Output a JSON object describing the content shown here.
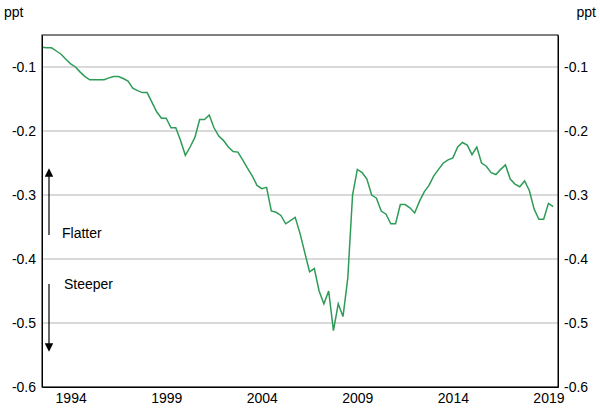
{
  "chart_data": {
    "type": "line",
    "ylabel": "ppt",
    "annotations": [
      "Flatter",
      "Steeper"
    ],
    "color": "#2e9b57",
    "grid": true,
    "x": [
      1993,
      1993.25,
      1993.5,
      1993.75,
      1994,
      1994.25,
      1994.5,
      1994.75,
      1995,
      1995.25,
      1995.5,
      1995.75,
      1996,
      1996.25,
      1996.5,
      1996.75,
      1997,
      1997.25,
      1997.5,
      1997.75,
      1998,
      1998.25,
      1998.5,
      1998.75,
      1999,
      1999.25,
      1999.5,
      1999.75,
      2000,
      2000.25,
      2000.5,
      2000.75,
      2001,
      2001.25,
      2001.5,
      2001.75,
      2002,
      2002.25,
      2002.5,
      2002.75,
      2003,
      2003.25,
      2003.5,
      2003.75,
      2004,
      2004.25,
      2004.5,
      2004.75,
      2005,
      2005.25,
      2005.5,
      2005.75,
      2006,
      2006.25,
      2006.5,
      2006.75,
      2007,
      2007.25,
      2007.5,
      2007.75,
      2008,
      2008.25,
      2008.5,
      2008.75,
      2009,
      2009.25,
      2009.5,
      2009.75,
      2010,
      2010.25,
      2010.5,
      2010.75,
      2011,
      2011.25,
      2011.5,
      2011.75,
      2012,
      2012.25,
      2012.5,
      2012.75,
      2013,
      2013.25,
      2013.5,
      2013.75,
      2014,
      2014.25,
      2014.5,
      2014.75,
      2015,
      2015.25,
      2015.5,
      2015.75,
      2016,
      2016.25,
      2016.5,
      2016.75,
      2017,
      2017.25,
      2017.5,
      2017.75,
      2018,
      2018.25,
      2018.5,
      2018.75,
      2019,
      2019.25,
      2019.5,
      2019.75
    ],
    "values": [
      -0.069,
      -0.07,
      -0.07,
      -0.075,
      -0.08,
      -0.088,
      -0.095,
      -0.1,
      -0.108,
      -0.115,
      -0.12,
      -0.12,
      -0.12,
      -0.12,
      -0.117,
      -0.115,
      -0.115,
      -0.118,
      -0.122,
      -0.133,
      -0.137,
      -0.14,
      -0.14,
      -0.155,
      -0.17,
      -0.18,
      -0.18,
      -0.195,
      -0.195,
      -0.215,
      -0.238,
      -0.225,
      -0.21,
      -0.182,
      -0.182,
      -0.175,
      -0.195,
      -0.208,
      -0.215,
      -0.225,
      -0.232,
      -0.233,
      -0.245,
      -0.258,
      -0.27,
      -0.285,
      -0.29,
      -0.288,
      -0.325,
      -0.327,
      -0.332,
      -0.345,
      -0.34,
      -0.335,
      -0.36,
      -0.39,
      -0.42,
      -0.415,
      -0.45,
      -0.47,
      -0.45,
      -0.512,
      -0.47,
      -0.49,
      -0.43,
      -0.3,
      -0.26,
      -0.265,
      -0.275,
      -0.3,
      -0.305,
      -0.325,
      -0.33,
      -0.345,
      -0.345,
      -0.315,
      -0.315,
      -0.32,
      -0.328,
      -0.31,
      -0.295,
      -0.285,
      -0.27,
      -0.26,
      -0.25,
      -0.245,
      -0.242,
      -0.225,
      -0.218,
      -0.222,
      -0.237,
      -0.225,
      -0.25,
      -0.255,
      -0.265,
      -0.268,
      -0.26,
      -0.253,
      -0.275,
      -0.283,
      -0.287,
      -0.278,
      -0.293,
      -0.322,
      -0.338,
      -0.338,
      -0.313,
      -0.318
    ],
    "xlim": [
      1993,
      2020
    ],
    "xticks": [
      {
        "value": 1994.5,
        "label": "1994"
      },
      {
        "value": 1999.5,
        "label": "1999"
      },
      {
        "value": 2004.5,
        "label": "2004"
      },
      {
        "value": 2009.5,
        "label": "2009"
      },
      {
        "value": 2014.5,
        "label": "2014"
      },
      {
        "value": 2019.5,
        "label": "2019"
      }
    ],
    "ylim": [
      -0.6,
      -0.05
    ],
    "yticks": [
      -0.6,
      -0.5,
      -0.4,
      -0.3,
      -0.2,
      -0.1
    ]
  }
}
